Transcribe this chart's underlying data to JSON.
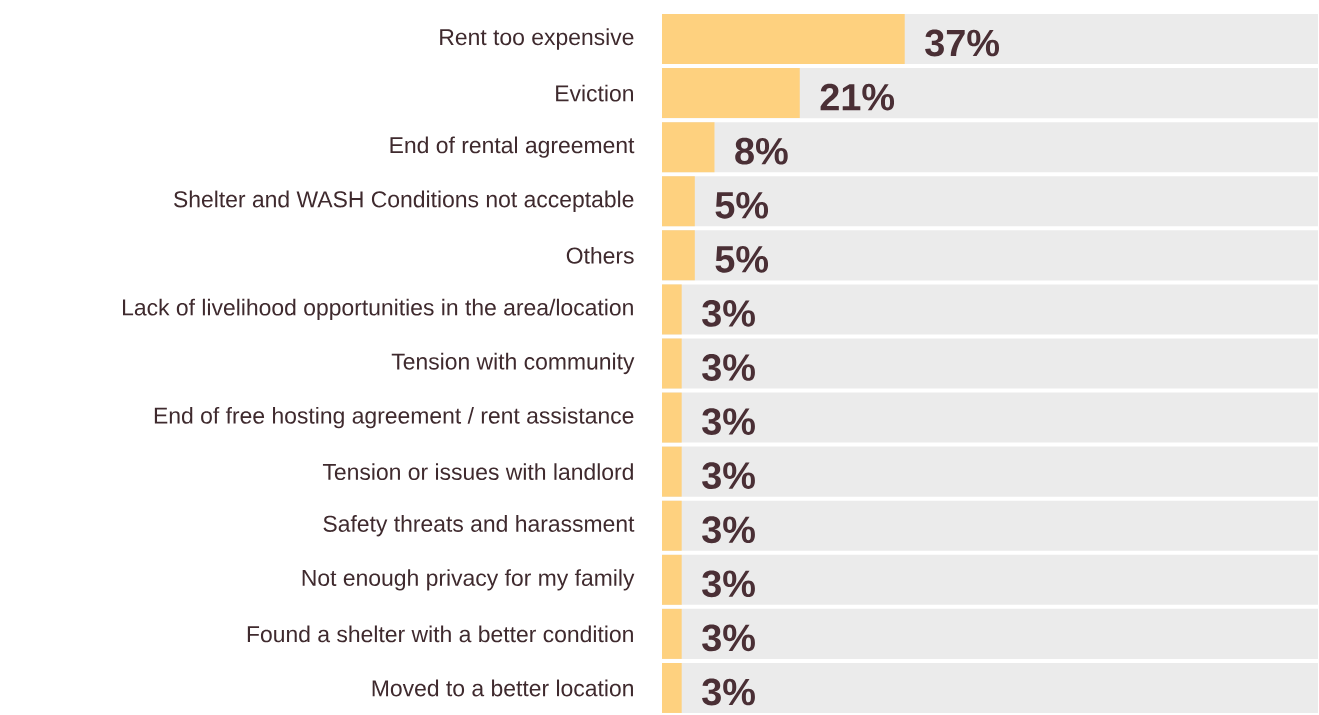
{
  "chart_data": {
    "type": "bar",
    "orientation": "horizontal",
    "tick_labels": "y",
    "categories": [
      "Rent too expensive",
      "Eviction",
      "End of rental agreement",
      "Shelter and WASH Conditions not acceptable",
      "Others",
      "Lack of livelihood opportunities in the area/location",
      "Tension with community",
      "End of free hosting agreement / rent assistance",
      "Tension or issues with landlord",
      "Safety threats and harassment",
      "Not enough privacy for my family",
      "Found a shelter with a better condition",
      "Moved to a better location"
    ],
    "series": [
      {
        "color": "#fed17f",
        "values": [
          37,
          21,
          8,
          5,
          5,
          3,
          3,
          3,
          3,
          3,
          3,
          3,
          3
        ],
        "value_labels": [
          "37%",
          "21%",
          "8%",
          "5%",
          "5%",
          "3%",
          "3%",
          "3%",
          "3%",
          "3%",
          "3%",
          "3%",
          "3%"
        ]
      }
    ],
    "xlim": [
      0,
      100
    ]
  }
}
